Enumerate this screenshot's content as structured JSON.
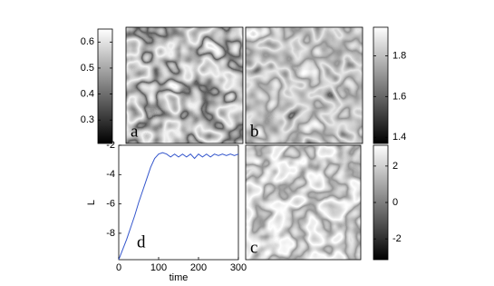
{
  "chart_data": [
    {
      "type": "colorbar",
      "ylim": [
        0.21,
        0.65
      ],
      "yticks": [
        0.3,
        0.4,
        0.5,
        0.6
      ]
    },
    {
      "type": "image",
      "annotation": "a"
    },
    {
      "type": "image",
      "annotation": "b"
    },
    {
      "type": "colorbar",
      "ylim": [
        1.37,
        1.94
      ],
      "yticks": [
        1.4,
        1.6,
        1.8
      ]
    },
    {
      "type": "line",
      "annotation": "d",
      "xlabel": "time",
      "ylabel": "L",
      "color": "#3355cc",
      "x": [
        0,
        10,
        20,
        30,
        40,
        50,
        60,
        70,
        80,
        90,
        100,
        110,
        120,
        130,
        140,
        150,
        160,
        170,
        180,
        190,
        200,
        210,
        220,
        230,
        240,
        250,
        260,
        270,
        280,
        290,
        300
      ],
      "values": [
        -9.8,
        -9.1,
        -8.4,
        -7.6,
        -6.8,
        -5.9,
        -5.1,
        -4.3,
        -3.5,
        -2.9,
        -2.6,
        -2.5,
        -2.6,
        -2.8,
        -2.6,
        -2.8,
        -2.6,
        -2.8,
        -2.6,
        -2.9,
        -2.6,
        -2.8,
        -2.6,
        -2.8,
        -2.6,
        -2.7,
        -2.6,
        -2.7,
        -2.6,
        -2.7,
        -2.6
      ],
      "xlim": [
        0,
        300
      ],
      "xticks": [
        0,
        100,
        200,
        300
      ],
      "ylim": [
        -9.8,
        -2
      ],
      "yticks": [
        -8,
        -6,
        -4,
        -2
      ]
    },
    {
      "type": "image",
      "annotation": "c"
    },
    {
      "type": "colorbar",
      "ylim": [
        -3.14,
        3.14
      ],
      "yticks": [
        -2,
        0,
        2
      ]
    }
  ]
}
